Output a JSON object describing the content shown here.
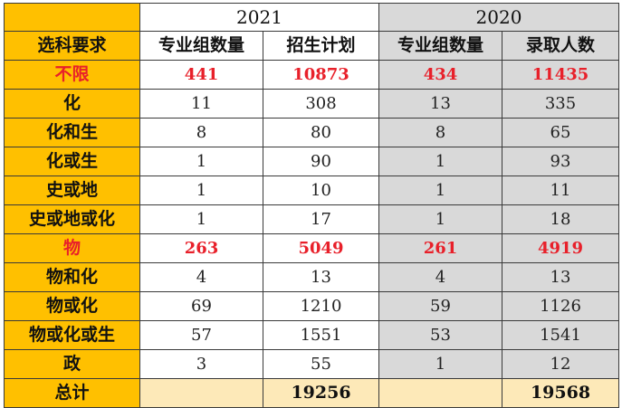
{
  "header": {
    "year_2021": "2021",
    "year_2020": "2020",
    "col_label": "选科要求",
    "col_2021_groups": "专业组数量",
    "col_2021_plan": "招生计划",
    "col_2020_groups": "专业组数量",
    "col_2020_admit": "录取人数"
  },
  "rows": [
    {
      "label": "不限",
      "g21": "441",
      "p21": "10873",
      "g20": "434",
      "a20": "11435",
      "highlight": true
    },
    {
      "label": "化",
      "g21": "11",
      "p21": "308",
      "g20": "13",
      "a20": "335",
      "highlight": false
    },
    {
      "label": "化和生",
      "g21": "8",
      "p21": "80",
      "g20": "8",
      "a20": "65",
      "highlight": false
    },
    {
      "label": "化或生",
      "g21": "1",
      "p21": "90",
      "g20": "1",
      "a20": "93",
      "highlight": false
    },
    {
      "label": "史或地",
      "g21": "1",
      "p21": "10",
      "g20": "1",
      "a20": "11",
      "highlight": false
    },
    {
      "label": "史或地或化",
      "g21": "1",
      "p21": "17",
      "g20": "1",
      "a20": "18",
      "highlight": false
    },
    {
      "label": "物",
      "g21": "263",
      "p21": "5049",
      "g20": "261",
      "a20": "4919",
      "highlight": true
    },
    {
      "label": "物和化",
      "g21": "4",
      "p21": "13",
      "g20": "4",
      "a20": "13",
      "highlight": false
    },
    {
      "label": "物或化",
      "g21": "69",
      "p21": "1210",
      "g20": "59",
      "a20": "1126",
      "highlight": false
    },
    {
      "label": "物或化或生",
      "g21": "57",
      "p21": "1551",
      "g20": "53",
      "a20": "1541",
      "highlight": false
    },
    {
      "label": "政",
      "g21": "3",
      "p21": "55",
      "g20": "1",
      "a20": "12",
      "highlight": false
    }
  ],
  "total": {
    "label": "总计",
    "p21": "19256",
    "a20": "19568"
  },
  "colors": {
    "label_bg": "#ffc000",
    "year2020_bg": "#d9d9d9",
    "total_bg": "#fde9b8",
    "highlight_text": "#e8202a"
  }
}
